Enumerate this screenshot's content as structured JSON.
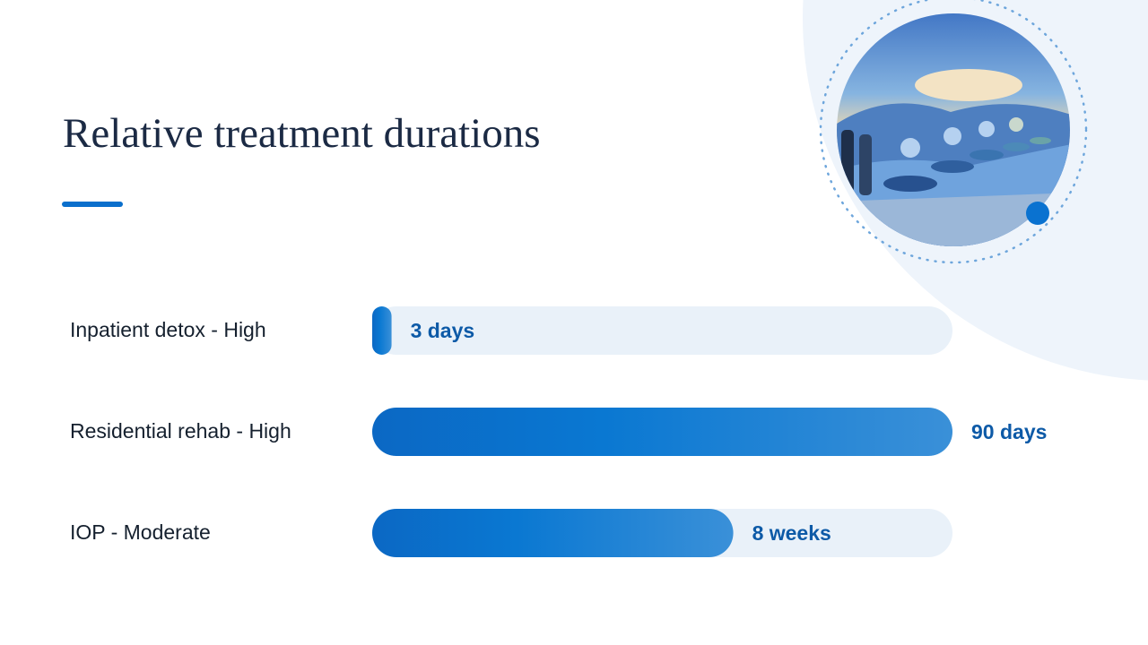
{
  "chart_data": {
    "type": "bar",
    "orientation": "horizontal",
    "title": "Relative treatment durations",
    "categories": [
      "Inpatient detox - High",
      "Residential rehab - High",
      "IOP - Moderate"
    ],
    "values": [
      3,
      90,
      56
    ],
    "value_labels": [
      "3 days",
      "90 days",
      "8 weeks"
    ],
    "xlim": [
      0,
      90
    ],
    "color": "#0a6fcc"
  }
}
